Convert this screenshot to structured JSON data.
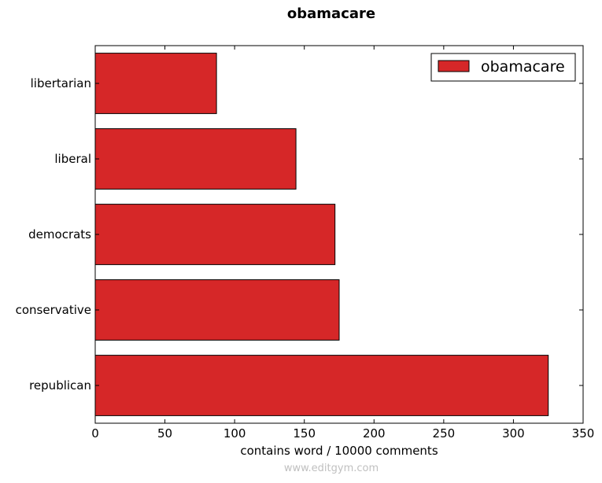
{
  "chart_data": {
    "type": "bar",
    "orientation": "horizontal",
    "title": "obamacare",
    "categories": [
      "republican",
      "conservative",
      "democrats",
      "liberal",
      "libertarian"
    ],
    "series": [
      {
        "name": "obamacare",
        "values": [
          325,
          175,
          172,
          144,
          87
        ],
        "color": "#d62728"
      }
    ],
    "xlabel": "contains word / 10000 comments",
    "ylabel": "",
    "xlim": [
      0,
      350
    ],
    "xticks": [
      0,
      50,
      100,
      150,
      200,
      250,
      300,
      350
    ],
    "grid": false,
    "legend_position": "top-right"
  },
  "watermark": "www.editgym.com"
}
